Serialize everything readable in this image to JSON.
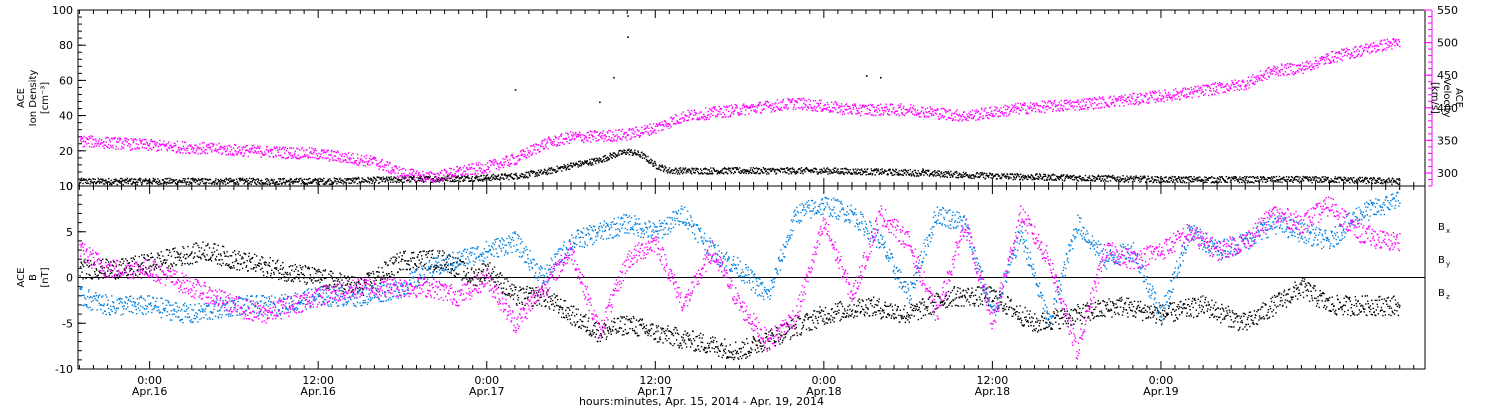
{
  "chart_data": [
    {
      "type": "scatter",
      "panel": "top",
      "x_unit": "hours since 2014-04-15 00:00 UTC",
      "xlim": [
        18.9,
        114.8
      ],
      "y_left": {
        "label_lines": [
          "ACE",
          "Ion Density",
          "[cm⁻³]"
        ],
        "ylim": [
          0,
          100
        ],
        "ticks": [
          0,
          20,
          40,
          60,
          80,
          100
        ]
      },
      "y_right": {
        "label_lines": [
          "ACE",
          "Velocity",
          "[km/s]"
        ],
        "ylim": [
          280,
          550
        ],
        "ticks": [
          300,
          350,
          400,
          450,
          500,
          550
        ]
      },
      "series": [
        {
          "axis": "left",
          "color": "#000000",
          "points": [
            [
              19,
              3
            ],
            [
              25,
              3
            ],
            [
              30,
              3
            ],
            [
              36,
              3
            ],
            [
              42,
              4
            ],
            [
              48,
              5
            ],
            [
              50,
              6
            ],
            [
              52,
              8
            ],
            [
              54,
              12
            ],
            [
              56,
              15
            ],
            [
              57,
              18
            ],
            [
              58,
              20
            ],
            [
              59,
              18
            ],
            [
              60,
              12
            ],
            [
              61,
              9
            ],
            [
              66,
              9
            ],
            [
              72,
              9
            ],
            [
              78,
              8
            ],
            [
              84,
              6
            ],
            [
              90,
              5
            ],
            [
              96,
              4
            ],
            [
              102,
              4
            ],
            [
              108,
              4
            ],
            [
              113,
              3
            ]
          ],
          "outliers": [
            [
              50,
              55
            ],
            [
              58,
              97
            ],
            [
              58,
              85
            ],
            [
              57,
              62
            ],
            [
              56,
              48
            ],
            [
              75,
              63
            ],
            [
              79,
              10
            ],
            [
              76,
              62
            ]
          ]
        },
        {
          "axis": "right",
          "color": "#ff00ff",
          "points": [
            [
              19,
              350
            ],
            [
              25,
              342
            ],
            [
              30,
              336
            ],
            [
              36,
              330
            ],
            [
              40,
              318
            ],
            [
              42,
              300
            ],
            [
              44,
              294
            ],
            [
              46,
              303
            ],
            [
              48,
              310
            ],
            [
              50,
              322
            ],
            [
              52,
              345
            ],
            [
              54,
              356
            ],
            [
              56,
              357
            ],
            [
              58,
              360
            ],
            [
              60,
              370
            ],
            [
              62,
              388
            ],
            [
              66,
              398
            ],
            [
              70,
              408
            ],
            [
              74,
              398
            ],
            [
              78,
              398
            ],
            [
              82,
              388
            ],
            [
              86,
              400
            ],
            [
              90,
              406
            ],
            [
              94,
              414
            ],
            [
              98,
              424
            ],
            [
              102,
              438
            ],
            [
              104,
              458
            ],
            [
              106,
              462
            ],
            [
              108,
              478
            ],
            [
              110,
              488
            ],
            [
              112,
              498
            ],
            [
              113,
              500
            ]
          ]
        }
      ]
    },
    {
      "type": "scatter",
      "panel": "bottom",
      "x_unit": "hours since 2014-04-15 00:00 UTC",
      "xlim": [
        18.9,
        114.8
      ],
      "y_left": {
        "label_lines": [
          "ACE",
          "B",
          "[nT]"
        ],
        "ylim": [
          -10,
          10
        ],
        "ticks": [
          -10,
          -5,
          0,
          5,
          10
        ]
      },
      "zero_line": 0,
      "series": [
        {
          "name": "Bx",
          "label": "B",
          "label_sub": "x",
          "color": "#000000",
          "points": [
            [
              19,
              1
            ],
            [
              22,
              1
            ],
            [
              25,
              2
            ],
            [
              28,
              3
            ],
            [
              30,
              2
            ],
            [
              33,
              1
            ],
            [
              36,
              0
            ],
            [
              39,
              -1
            ],
            [
              42,
              2
            ],
            [
              45,
              2
            ],
            [
              47,
              0
            ],
            [
              48,
              1
            ],
            [
              50,
              -2
            ],
            [
              52,
              -2
            ],
            [
              54,
              -4
            ],
            [
              56,
              -6
            ],
            [
              58,
              -5
            ],
            [
              60,
              -6
            ],
            [
              63,
              -7
            ],
            [
              66,
              -8
            ],
            [
              69,
              -6
            ],
            [
              72,
              -4
            ],
            [
              75,
              -3
            ],
            [
              78,
              -4
            ],
            [
              81,
              -2
            ],
            [
              84,
              -2
            ],
            [
              87,
              -5
            ],
            [
              90,
              -4
            ],
            [
              93,
              -3
            ],
            [
              96,
              -4
            ],
            [
              99,
              -3
            ],
            [
              102,
              -5
            ],
            [
              104,
              -3
            ],
            [
              106,
              -1
            ],
            [
              108,
              -3
            ],
            [
              110,
              -3
            ],
            [
              113,
              -3
            ]
          ]
        },
        {
          "name": "By",
          "label": "B",
          "label_sub": "y",
          "color": "#0080e0",
          "points": [
            [
              19,
              -2
            ],
            [
              21,
              -3
            ],
            [
              24,
              -3
            ],
            [
              27,
              -4
            ],
            [
              30,
              -3
            ],
            [
              33,
              -3
            ],
            [
              36,
              -2
            ],
            [
              39,
              -2
            ],
            [
              42,
              -1
            ],
            [
              44,
              1
            ],
            [
              46,
              2
            ],
            [
              48,
              3
            ],
            [
              50,
              4
            ],
            [
              52,
              0
            ],
            [
              54,
              4
            ],
            [
              56,
              5
            ],
            [
              58,
              6
            ],
            [
              60,
              5
            ],
            [
              62,
              7
            ],
            [
              64,
              3
            ],
            [
              66,
              1
            ],
            [
              68,
              -2
            ],
            [
              70,
              7
            ],
            [
              72,
              8
            ],
            [
              74,
              7
            ],
            [
              76,
              4
            ],
            [
              78,
              -2
            ],
            [
              80,
              7
            ],
            [
              82,
              6
            ],
            [
              84,
              -4
            ],
            [
              86,
              5
            ],
            [
              88,
              -5
            ],
            [
              90,
              6
            ],
            [
              92,
              2
            ],
            [
              94,
              3
            ],
            [
              96,
              -4
            ],
            [
              98,
              5
            ],
            [
              100,
              3
            ],
            [
              102,
              4
            ],
            [
              104,
              6
            ],
            [
              106,
              5
            ],
            [
              108,
              4
            ],
            [
              110,
              7
            ],
            [
              112,
              8
            ],
            [
              113,
              9
            ]
          ]
        },
        {
          "name": "Bz",
          "label": "B",
          "label_sub": "z",
          "color": "#ff00ff",
          "points": [
            [
              19,
              3
            ],
            [
              21,
              1
            ],
            [
              24,
              1
            ],
            [
              27,
              -1
            ],
            [
              30,
              -3
            ],
            [
              32,
              -4
            ],
            [
              34,
              -3
            ],
            [
              36,
              -2
            ],
            [
              39,
              -1
            ],
            [
              42,
              -1
            ],
            [
              44,
              -1
            ],
            [
              46,
              -2
            ],
            [
              48,
              0
            ],
            [
              50,
              -5
            ],
            [
              52,
              -1
            ],
            [
              54,
              3
            ],
            [
              56,
              -6
            ],
            [
              58,
              2
            ],
            [
              60,
              4
            ],
            [
              62,
              -3
            ],
            [
              64,
              3
            ],
            [
              66,
              -3
            ],
            [
              68,
              -7
            ],
            [
              70,
              -4
            ],
            [
              72,
              6
            ],
            [
              74,
              -2
            ],
            [
              76,
              7
            ],
            [
              78,
              4
            ],
            [
              80,
              -4
            ],
            [
              82,
              6
            ],
            [
              84,
              -5
            ],
            [
              86,
              7
            ],
            [
              88,
              2
            ],
            [
              90,
              -8
            ],
            [
              92,
              3
            ],
            [
              94,
              2
            ],
            [
              96,
              3
            ],
            [
              98,
              5
            ],
            [
              100,
              3
            ],
            [
              102,
              4
            ],
            [
              104,
              7
            ],
            [
              106,
              6
            ],
            [
              108,
              8
            ],
            [
              110,
              5
            ],
            [
              112,
              4
            ],
            [
              113,
              4
            ]
          ]
        }
      ]
    }
  ],
  "x_axis": {
    "ticks": [
      {
        "hour": 24,
        "time": "0:00",
        "date": "Apr.16"
      },
      {
        "hour": 36,
        "time": "12:00",
        "date": "Apr.16"
      },
      {
        "hour": 48,
        "time": "0:00",
        "date": "Apr.17"
      },
      {
        "hour": 60,
        "time": "12:00",
        "date": "Apr.17"
      },
      {
        "hour": 72,
        "time": "0:00",
        "date": "Apr.18"
      },
      {
        "hour": 84,
        "time": "12:00",
        "date": "Apr.18"
      },
      {
        "hour": 96,
        "time": "0:00",
        "date": "Apr.19"
      }
    ],
    "caption": "hours:minutes, Apr. 15, 2014 - Apr. 19, 2014"
  }
}
